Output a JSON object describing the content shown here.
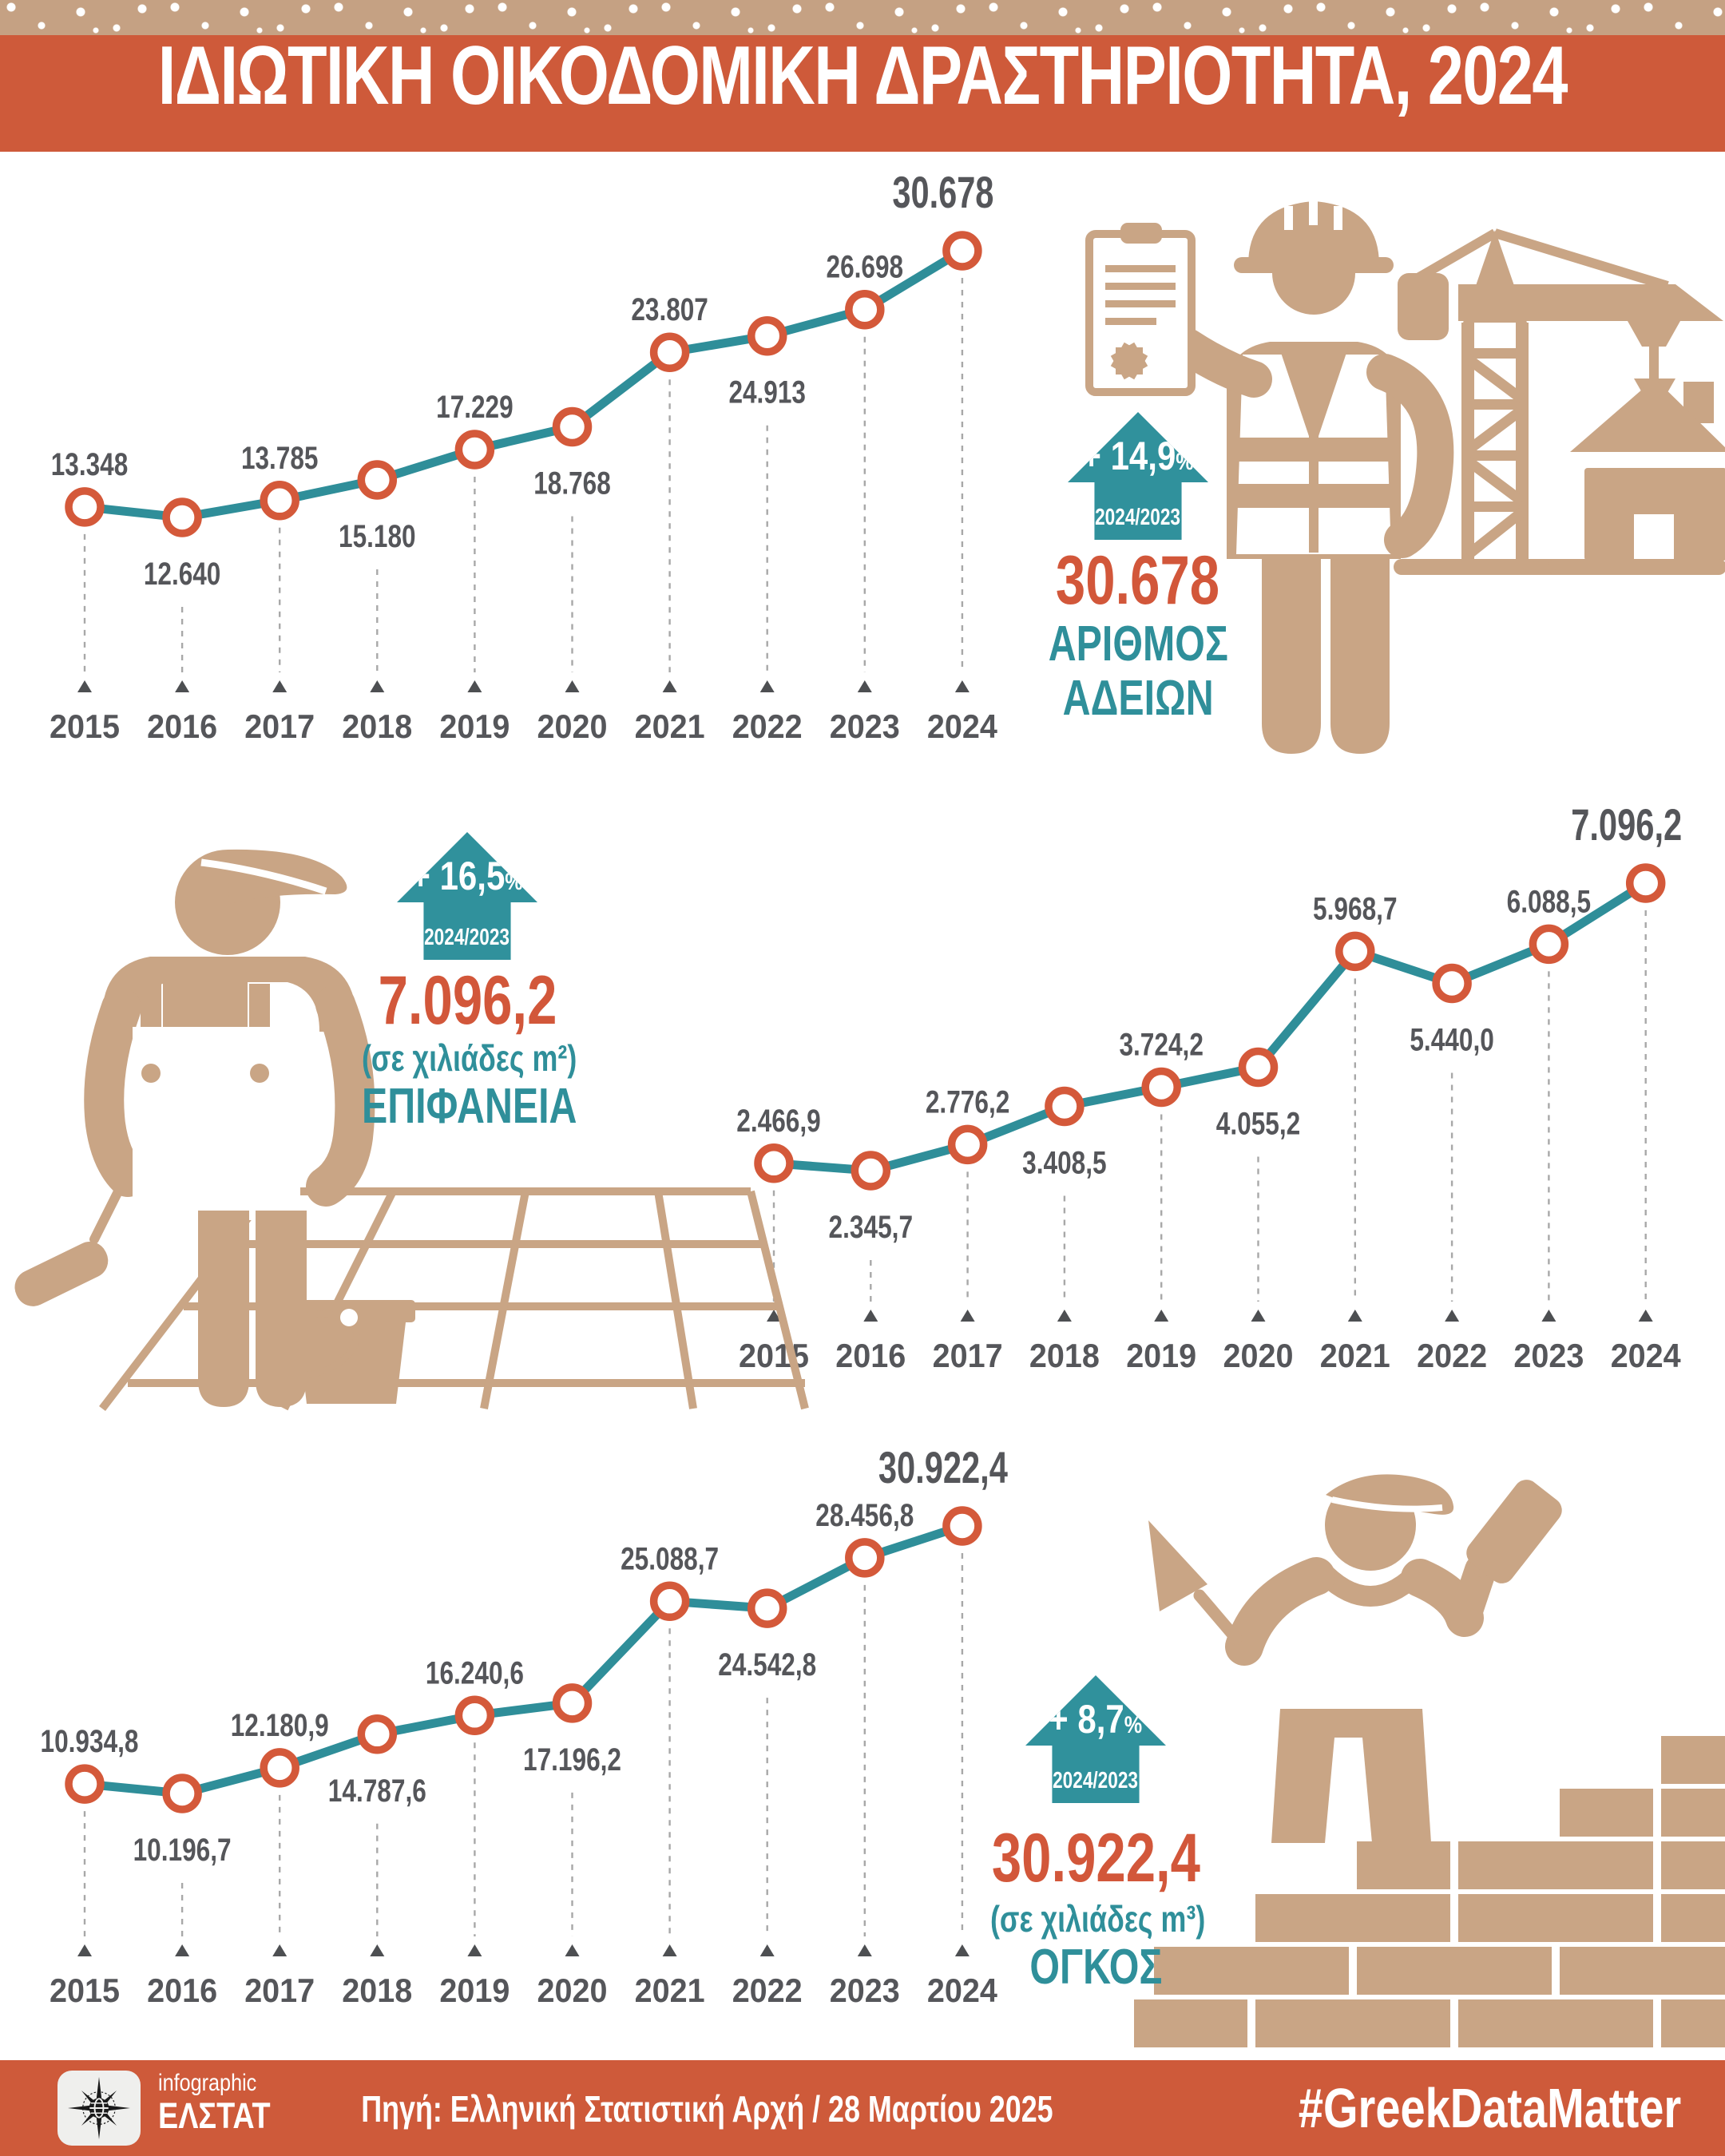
{
  "title": "ΙΔΙΩΤΙΚΗ ΟΙΚΟΔΟΜΙΚΗ ΔΡΑΣΤΗΡΙΟΤΗΤΑ, 2024",
  "colors": {
    "accent_orange": "#CE5A3A",
    "number_orange": "#D2573A",
    "teal": "#2F8F9A",
    "line_teal": "#2F8E99",
    "marker_orange": "#D4593A",
    "tan_icons": "#C9A585",
    "band_tan": "#C5A183",
    "label_gray": "#55565A"
  },
  "icons": {
    "section1": [
      "construction-worker-icon",
      "building-permit-icon",
      "tower-crane-icon",
      "house-icon"
    ],
    "section2": [
      "painter-icon",
      "tiled-floor-icon",
      "paint-bucket-icon",
      "paint-roller-icon"
    ],
    "section3": [
      "bricklayer-icon",
      "trowel-icon",
      "hammer-icon",
      "brick-wall-icon"
    ],
    "badges": "increase-arrow-icon",
    "footer": "elstat-compass-logo-icon"
  },
  "sections": [
    {
      "name": "permits",
      "badge_value": "+ 14,9",
      "badge_percent": "%",
      "badge_period": "2024/2023",
      "headline": "30.678",
      "unit": "",
      "label1": "ΑΡΙΘΜΟΣ",
      "label2": "ΑΔΕΙΩΝ"
    },
    {
      "name": "surface",
      "badge_value": "+ 16,5",
      "badge_percent": "%",
      "badge_period": "2024/2023",
      "headline": "7.096,2",
      "unit": "(σε χιλιάδες m²)",
      "label1": "ΕΠΙΦΑΝΕΙΑ",
      "label2": ""
    },
    {
      "name": "volume",
      "badge_value": "+ 8,7",
      "badge_percent": "%",
      "badge_period": "2024/2023",
      "headline": "30.922,4",
      "unit": "(σε χιλιάδες m³)",
      "label1": "ΟΓΚΟΣ",
      "label2": ""
    }
  ],
  "chart_data": [
    {
      "type": "line",
      "title": "Αριθμός αδειών",
      "ylabel": "",
      "xlabel": "",
      "legend": "none",
      "grid": false,
      "categories": [
        "2015",
        "2016",
        "2017",
        "2018",
        "2019",
        "2020",
        "2021",
        "2022",
        "2023",
        "2024"
      ],
      "values": [
        13348,
        12640,
        13785,
        15180,
        17229,
        18768,
        23807,
        24913,
        26698,
        30678
      ],
      "point_labels": [
        "13.348",
        "12.640",
        "13.785",
        "15.180",
        "17.229",
        "18.768",
        "23.807",
        "24.913",
        "26.698",
        "30.678"
      ],
      "ylim": [
        12000,
        31500
      ],
      "yoy_change_pct": 14.9
    },
    {
      "type": "line",
      "title": "Επιφάνεια (σε χιλιάδες m²)",
      "ylabel": "",
      "xlabel": "",
      "legend": "none",
      "grid": false,
      "categories": [
        "2015",
        "2016",
        "2017",
        "2018",
        "2019",
        "2020",
        "2021",
        "2022",
        "2023",
        "2024"
      ],
      "values": [
        2466.9,
        2345.7,
        2776.2,
        3408.5,
        3724.2,
        4055.2,
        5968.7,
        5440.0,
        6088.5,
        7096.2
      ],
      "point_labels": [
        "2.466,9",
        "2.345,7",
        "2.776,2",
        "3.408,5",
        "3.724,2",
        "4.055,2",
        "5.968,7",
        "5.440,0",
        "6.088,5",
        "7.096,2"
      ],
      "ylim": [
        2200,
        7400
      ],
      "yoy_change_pct": 16.5
    },
    {
      "type": "line",
      "title": "Όγκος (σε χιλιάδες m³)",
      "ylabel": "",
      "xlabel": "",
      "legend": "none",
      "grid": false,
      "categories": [
        "2015",
        "2016",
        "2017",
        "2018",
        "2019",
        "2020",
        "2021",
        "2022",
        "2023",
        "2024"
      ],
      "values": [
        10934.8,
        10196.7,
        12180.9,
        14787.6,
        16240.6,
        17196.2,
        25088.7,
        24542.8,
        28456.8,
        30922.4
      ],
      "point_labels": [
        "10.934,8",
        "10.196,7",
        "12.180,9",
        "14.787,6",
        "16.240,6",
        "17.196,2",
        "25.088,7",
        "24.542,8",
        "28.456,8",
        "30.922,4"
      ],
      "ylim": [
        9800,
        31800
      ],
      "yoy_change_pct": 8.7
    }
  ],
  "footer": {
    "brand_top": "infographic",
    "brand_name": "ΕΛΣΤΑΤ",
    "source": "Πηγή: Ελληνική Στατιστική Αρχή / 28 Μαρτίου 2025",
    "hashtag": "#GreekDataMatter"
  }
}
